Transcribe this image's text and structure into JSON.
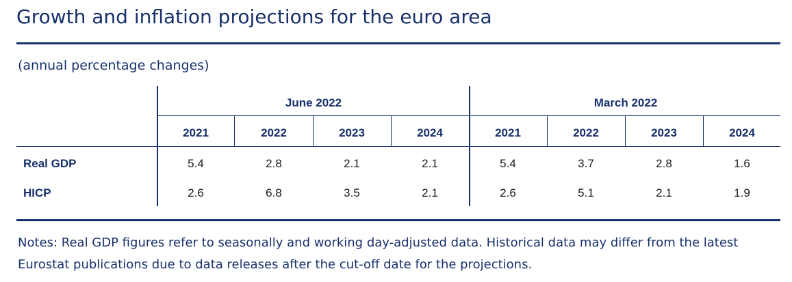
{
  "title": "Growth and inflation projections for the euro area",
  "subtitle": "(annual percentage changes)",
  "groups": [
    "June 2022",
    "March 2022"
  ],
  "years": [
    "2021",
    "2022",
    "2023",
    "2024",
    "2021",
    "2022",
    "2023",
    "2024"
  ],
  "rows": [
    {
      "label": "Real GDP",
      "values": [
        "5.4",
        "2.8",
        "2.1",
        "2.1",
        "5.4",
        "3.7",
        "2.8",
        "1.6"
      ]
    },
    {
      "label": "HICP",
      "values": [
        "2.6",
        "6.8",
        "3.5",
        "2.1",
        "2.6",
        "5.1",
        "2.1",
        "1.9"
      ]
    }
  ],
  "notes": "Notes: Real GDP figures refer to seasonally and working day-adjusted data. Historical data may differ from the latest Eurostat publications due to data releases after the cut-off date for the projections.",
  "colors": {
    "accent": "#17306b",
    "text": "#1a1a1a",
    "background": "#ffffff"
  }
}
